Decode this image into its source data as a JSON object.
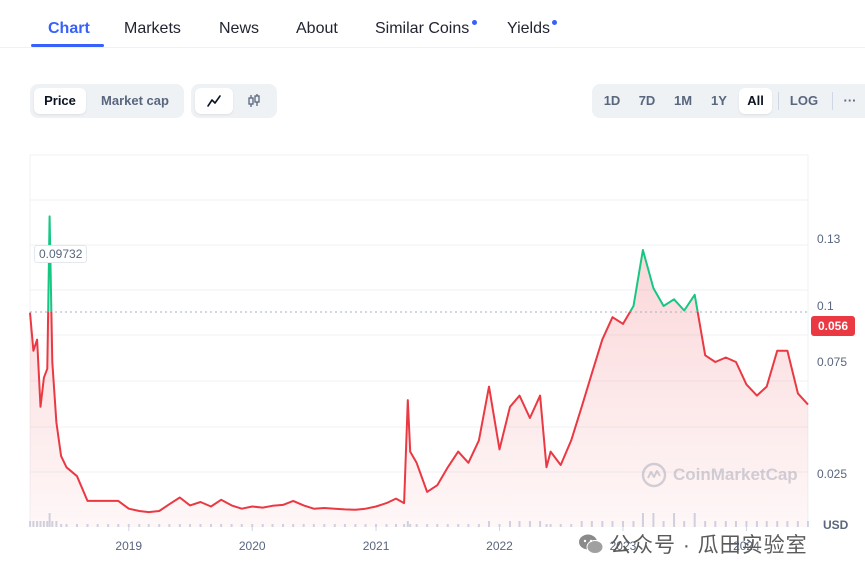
{
  "tabs": {
    "items": [
      {
        "label": "Chart",
        "active": true,
        "dot": false
      },
      {
        "label": "Markets",
        "active": false,
        "dot": false
      },
      {
        "label": "News",
        "active": false,
        "dot": false
      },
      {
        "label": "About",
        "active": false,
        "dot": false
      },
      {
        "label": "Similar Coins",
        "active": false,
        "dot": true
      },
      {
        "label": "Yields",
        "active": false,
        "dot": true
      }
    ]
  },
  "toolbar": {
    "metric": {
      "price": "Price",
      "market_cap": "Market cap",
      "selected": "Price"
    },
    "chart_type": {
      "line_icon": "line-chart-icon",
      "candle_icon": "candlestick-icon",
      "selected": "line"
    },
    "ranges": {
      "items": [
        "1D",
        "7D",
        "1M",
        "1Y",
        "All"
      ],
      "selected": "All"
    },
    "log_label": "LOG",
    "more_label": "···"
  },
  "chart": {
    "currency": "USD",
    "current_price": "0.056",
    "reference_price": "0.09732",
    "watermark": "CoinMarketCap",
    "colors": {
      "up": "#16c784",
      "down": "#ea3943",
      "area": "#ea3943",
      "accent": "#3861fb"
    }
  },
  "chart_data": {
    "type": "line",
    "title": "",
    "xlabel": "",
    "ylabel": "USD",
    "x_ticks": [
      "2019",
      "2020",
      "2021",
      "2022",
      "2023",
      "2024"
    ],
    "y_ticks": [
      0.025,
      0.075,
      0.1,
      0.13
    ],
    "ylim": [
      0.0,
      0.14
    ],
    "reference_value": 0.09732,
    "current_value": 0.056,
    "grid": true,
    "series": [
      {
        "values": [
          [
            "2018-03-15",
            0.097
          ],
          [
            "2018-03-25",
            0.08
          ],
          [
            "2018-04-05",
            0.085
          ],
          [
            "2018-04-15",
            0.055
          ],
          [
            "2018-04-25",
            0.068
          ],
          [
            "2018-05-05",
            0.072
          ],
          [
            "2018-05-12",
            0.14
          ],
          [
            "2018-05-20",
            0.075
          ],
          [
            "2018-06-01",
            0.048
          ],
          [
            "2018-06-15",
            0.033
          ],
          [
            "2018-07-01",
            0.028
          ],
          [
            "2018-08-01",
            0.024
          ],
          [
            "2018-09-01",
            0.013
          ],
          [
            "2018-10-01",
            0.013
          ],
          [
            "2018-11-01",
            0.013
          ],
          [
            "2018-12-01",
            0.013
          ],
          [
            "2019-01-01",
            0.0095
          ],
          [
            "2019-02-01",
            0.0085
          ],
          [
            "2019-03-01",
            0.008
          ],
          [
            "2019-04-01",
            0.0085
          ],
          [
            "2019-05-01",
            0.0115
          ],
          [
            "2019-06-01",
            0.0145
          ],
          [
            "2019-07-01",
            0.011
          ],
          [
            "2019-08-01",
            0.0125
          ],
          [
            "2019-09-01",
            0.0105
          ],
          [
            "2019-10-01",
            0.0135
          ],
          [
            "2019-11-01",
            0.011
          ],
          [
            "2019-12-01",
            0.0095
          ],
          [
            "2020-01-01",
            0.0105
          ],
          [
            "2020-02-01",
            0.01
          ],
          [
            "2020-03-01",
            0.0108
          ],
          [
            "2020-04-01",
            0.0112
          ],
          [
            "2020-05-01",
            0.013
          ],
          [
            "2020-06-01",
            0.011
          ],
          [
            "2020-07-01",
            0.0095
          ],
          [
            "2020-08-01",
            0.0098
          ],
          [
            "2020-09-01",
            0.0095
          ],
          [
            "2020-10-01",
            0.0092
          ],
          [
            "2020-11-01",
            0.009
          ],
          [
            "2020-12-01",
            0.0095
          ],
          [
            "2021-01-01",
            0.0105
          ],
          [
            "2021-02-01",
            0.012
          ],
          [
            "2021-03-01",
            0.014
          ],
          [
            "2021-03-25",
            0.012
          ],
          [
            "2021-04-05",
            0.058
          ],
          [
            "2021-04-12",
            0.035
          ],
          [
            "2021-05-01",
            0.03
          ],
          [
            "2021-06-01",
            0.017
          ],
          [
            "2021-07-01",
            0.02
          ],
          [
            "2021-08-01",
            0.028
          ],
          [
            "2021-09-01",
            0.035
          ],
          [
            "2021-10-01",
            0.03
          ],
          [
            "2021-11-01",
            0.04
          ],
          [
            "2021-12-01",
            0.064
          ],
          [
            "2022-01-01",
            0.036
          ],
          [
            "2022-02-01",
            0.055
          ],
          [
            "2022-03-01",
            0.06
          ],
          [
            "2022-04-01",
            0.05
          ],
          [
            "2022-05-01",
            0.06
          ],
          [
            "2022-05-20",
            0.028
          ],
          [
            "2022-06-01",
            0.035
          ],
          [
            "2022-07-01",
            0.029
          ],
          [
            "2022-08-01",
            0.04
          ],
          [
            "2022-09-01",
            0.055
          ],
          [
            "2022-10-01",
            0.07
          ],
          [
            "2022-11-01",
            0.085
          ],
          [
            "2022-12-01",
            0.095
          ],
          [
            "2023-01-01",
            0.092
          ],
          [
            "2023-02-01",
            0.1
          ],
          [
            "2023-03-01",
            0.125
          ],
          [
            "2023-04-01",
            0.108
          ],
          [
            "2023-05-01",
            0.1
          ],
          [
            "2023-06-01",
            0.103
          ],
          [
            "2023-07-01",
            0.098
          ],
          [
            "2023-08-01",
            0.105
          ],
          [
            "2023-09-01",
            0.078
          ],
          [
            "2023-10-01",
            0.075
          ],
          [
            "2023-11-01",
            0.077
          ],
          [
            "2023-12-01",
            0.075
          ],
          [
            "2024-01-01",
            0.065
          ],
          [
            "2024-02-01",
            0.06
          ],
          [
            "2024-03-01",
            0.064
          ],
          [
            "2024-04-01",
            0.08
          ],
          [
            "2024-05-01",
            0.08
          ],
          [
            "2024-06-01",
            0.061
          ],
          [
            "2024-07-01",
            0.056
          ]
        ]
      }
    ]
  },
  "footer": {
    "wechat_label": "公众号 · 瓜田实验室"
  }
}
